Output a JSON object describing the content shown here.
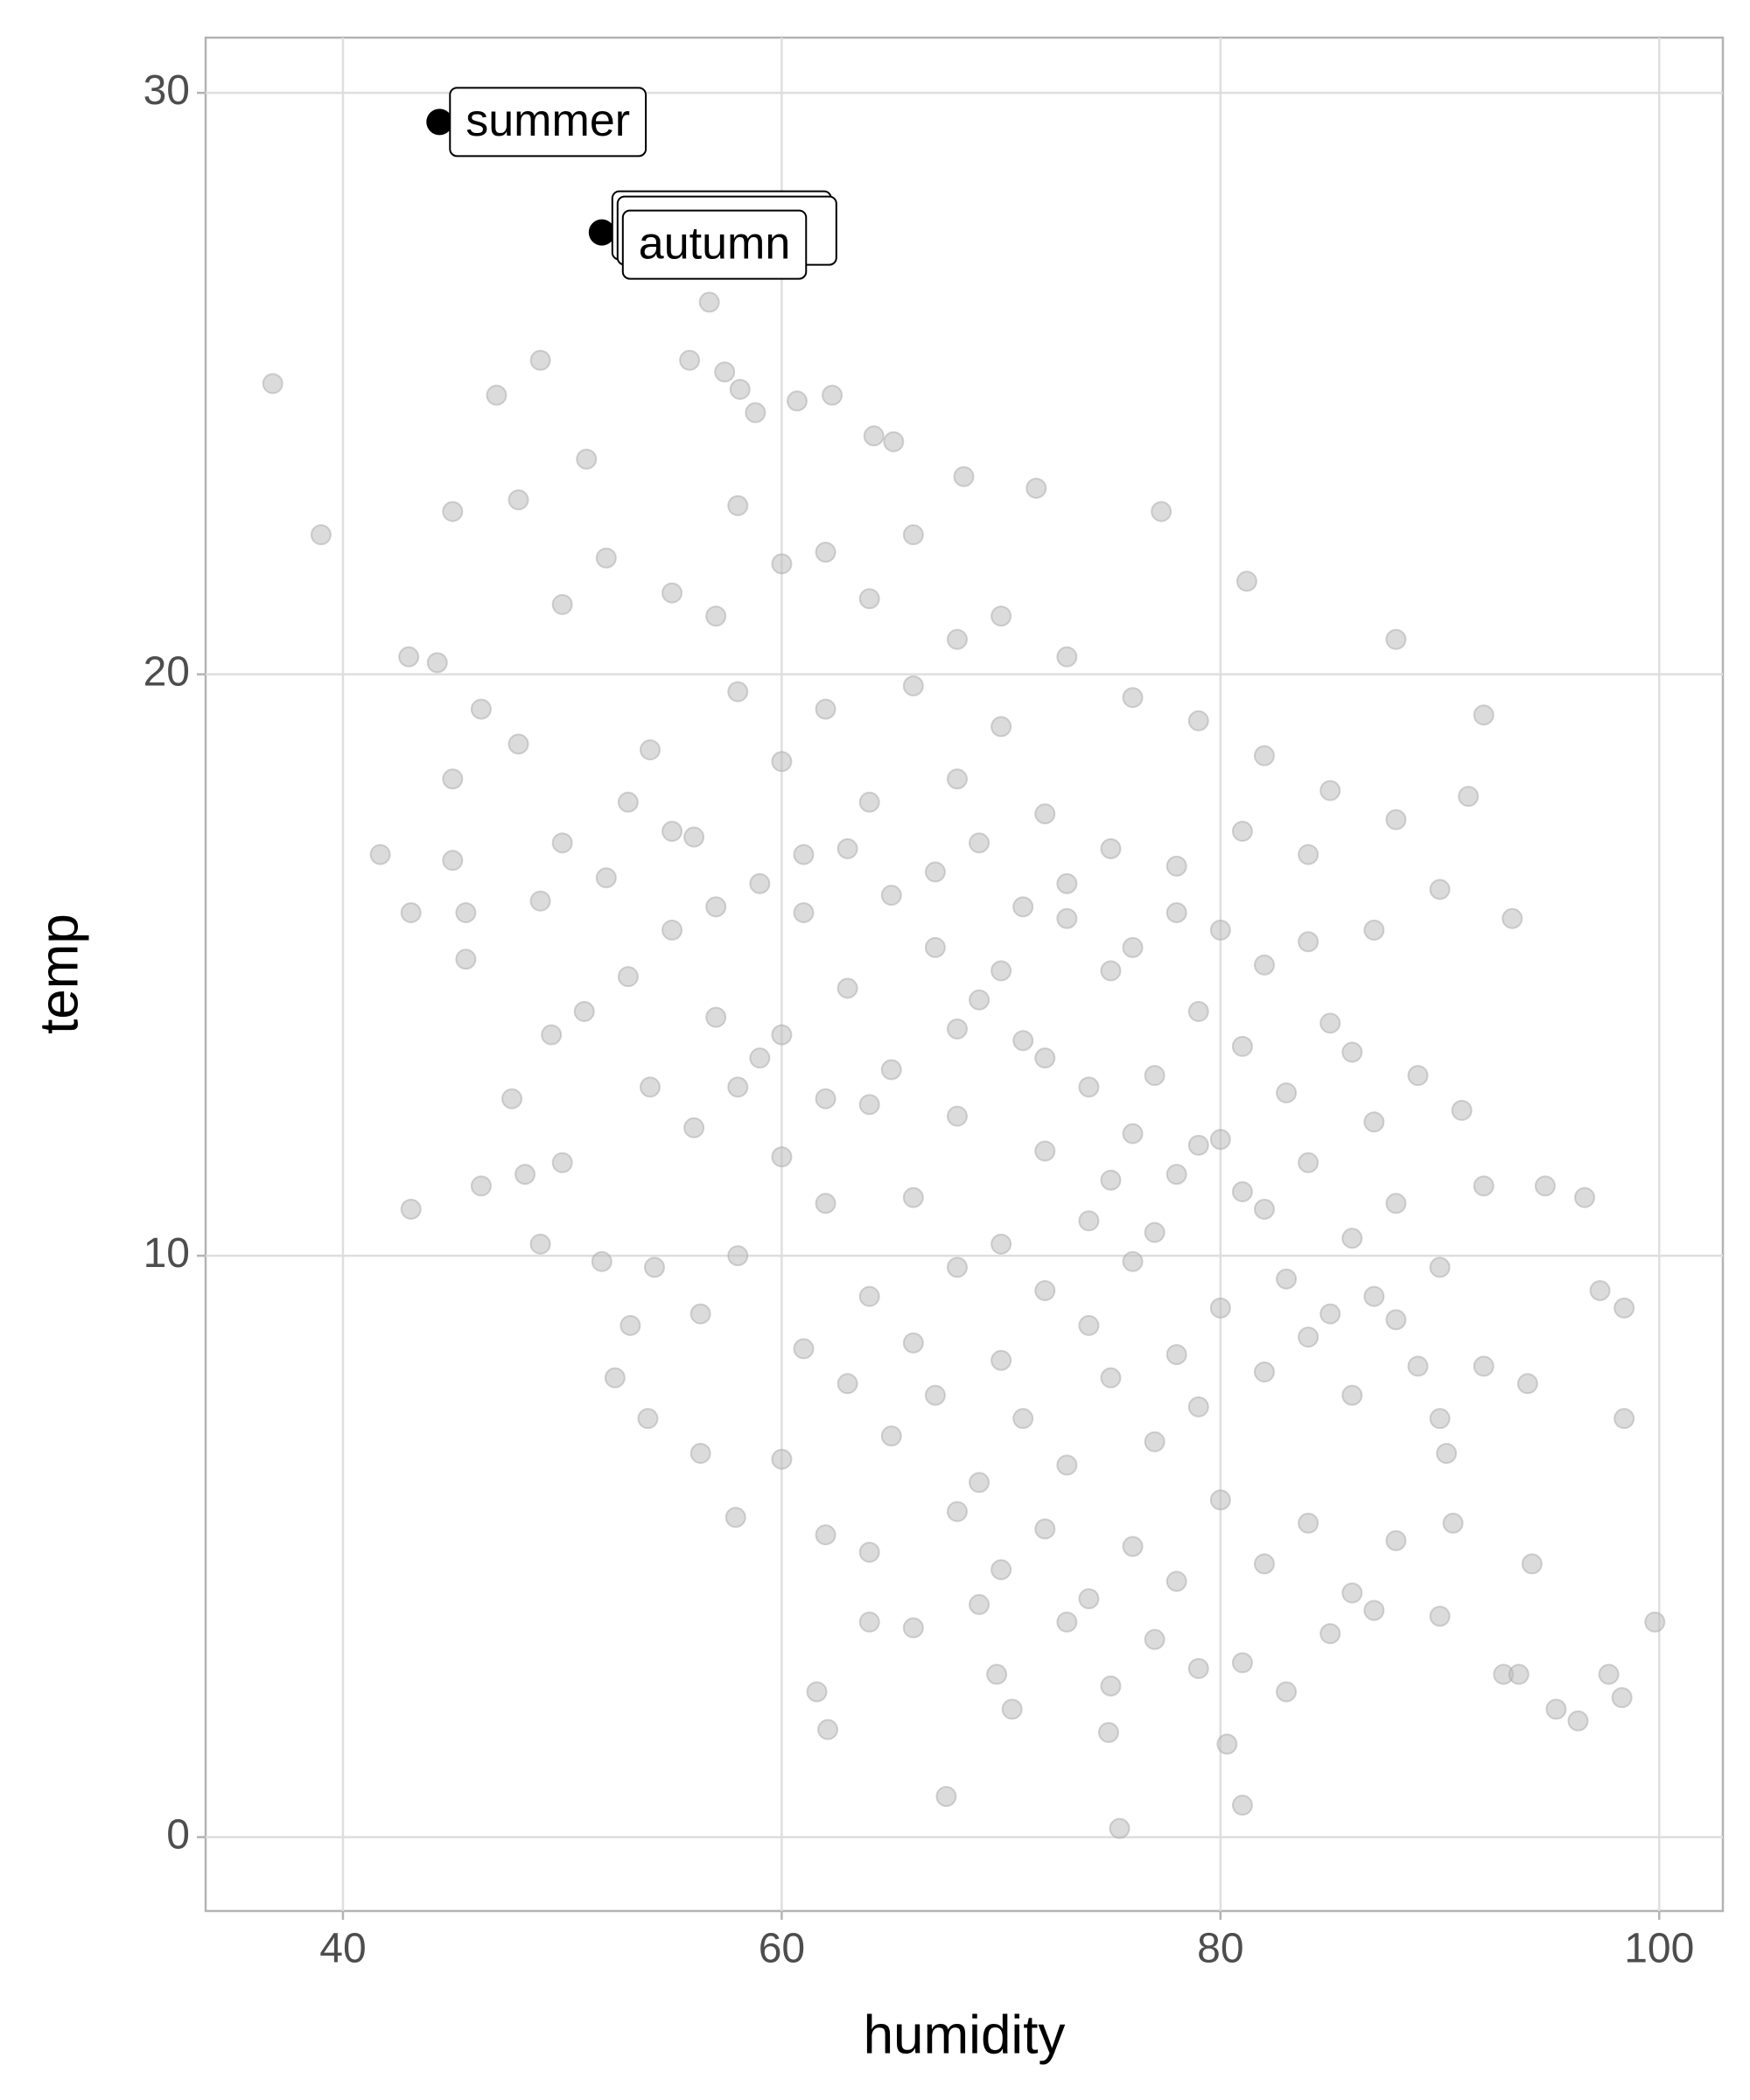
{
  "chart_data": {
    "type": "scatter",
    "x_label": "humidity",
    "y_label": "temp",
    "xlim": [
      33.74,
      102.9
    ],
    "ylim": [
      -1.27,
      30.95
    ],
    "xticks": [
      40,
      60,
      80,
      100
    ],
    "yticks": [
      0,
      10,
      20,
      30
    ],
    "grid": true,
    "color": "#bdbdbd",
    "x": [
      36.8,
      39.0,
      41.7,
      43.1,
      43.1,
      43.0,
      44.3,
      45.0,
      45.0,
      45.0,
      45.6,
      45.6,
      46.3,
      46.3,
      47.0,
      49.0,
      51.1,
      47.7,
      48.3,
      49.0,
      49.5,
      50.0,
      56.7,
      55.8,
      57.4,
      58.1,
      60.7,
      62.3,
      58.8,
      64.2,
      65.1,
      68.3,
      71.6,
      77.3,
      81.2,
      88.0,
      92.0,
      91.3,
      93.3,
      94.8,
      96.6,
      97.3,
      98.4,
      98.4,
      94.2,
      99.8,
      92.9,
      93.6,
      95.3,
      96.3,
      97.7,
      98.3,
      90.3,
      90.6,
      81.0,
      80.3,
      75.4,
      67.5,
      62.1,
      61.6,
      69.8,
      70.5,
      74.9,
      57.9,
      56.3,
      53.9,
      52.4,
      53.1,
      51.8,
      54.2,
      56.3,
      60,
      62,
      64,
      66,
      68,
      70,
      72,
      58,
      56,
      54,
      52,
      50,
      48,
      53,
      55,
      57,
      59,
      61,
      63,
      65,
      67,
      69,
      71,
      73,
      75,
      77,
      79,
      81,
      83,
      85,
      87,
      89,
      91,
      76,
      78,
      80,
      82,
      84,
      86,
      88,
      90,
      92,
      74,
      72,
      70,
      68,
      66,
      64,
      62,
      60,
      58,
      64,
      66,
      68,
      70,
      72,
      74,
      76,
      78,
      80,
      82,
      84,
      86,
      88,
      90,
      92,
      94,
      79,
      77,
      75,
      73,
      71,
      69,
      67,
      65,
      63,
      61,
      60,
      62,
      64,
      68,
      70,
      72,
      74,
      76,
      78,
      80,
      82,
      84,
      86,
      88,
      90,
      85,
      81,
      77,
      73,
      69,
      66,
      64,
      75,
      79,
      83,
      87,
      62,
      58,
      55,
      52,
      50,
      48,
      57,
      60,
      64,
      66,
      68,
      70,
      73,
      76,
      79,
      82,
      85,
      88,
      90,
      87,
      84,
      81,
      78,
      75,
      73,
      71,
      69,
      67,
      65,
      63,
      61,
      59,
      57,
      55,
      53,
      51,
      49,
      54,
      56,
      58,
      60,
      62,
      76,
      78,
      80,
      82,
      84,
      86,
      75,
      77,
      79,
      81,
      83,
      85,
      87,
      89,
      74,
      72,
      70,
      68
    ],
    "y": [
      25.0,
      22.4,
      16.9,
      15.9,
      10.8,
      20.3,
      20.2,
      22.8,
      18.2,
      16.8,
      15.9,
      15.1,
      19.4,
      11.2,
      24.8,
      25.4,
      23.7,
      12.7,
      11.4,
      10.2,
      13.8,
      11.6,
      26.4,
      25.4,
      25.2,
      24.9,
      24.7,
      24.8,
      24.5,
      24.1,
      24.0,
      23.4,
      23.2,
      22.8,
      21.6,
      20.6,
      19.3,
      17.9,
      15.8,
      11.2,
      11.0,
      9.4,
      9.1,
      7.2,
      4.7,
      3.7,
      2.8,
      2.8,
      2.2,
      2.0,
      2.8,
      2.4,
      6.6,
      5.4,
      0.55,
      1.6,
      0.15,
      0.7,
      1.85,
      2.5,
      2.8,
      2.2,
      1.8,
      5.5,
      6.6,
      7.2,
      7.9,
      8.8,
      9.9,
      9.8,
      9.0,
      18.5,
      19.4,
      17.8,
      19.8,
      18.2,
      19.1,
      17.6,
      19.7,
      17.2,
      18.7,
      16.5,
      17.1,
      18.8,
      14.8,
      15.6,
      14.1,
      13.4,
      15.9,
      14.6,
      13.2,
      15.3,
      14.4,
      13.7,
      15.8,
      14.9,
      13.1,
      14.2,
      13.6,
      12.8,
      14.0,
      12.3,
      13.1,
      12.5,
      12.1,
      11.4,
      12.0,
      10.8,
      11.6,
      10.3,
      10.9,
      9.8,
      11.2,
      10.6,
      11.8,
      10.2,
      12.4,
      11.0,
      12.6,
      10.9,
      11.7,
      10.0,
      9.3,
      8.5,
      9.8,
      8.2,
      9.4,
      8.8,
      9.9,
      8.3,
      9.1,
      8.0,
      8.6,
      7.6,
      8.9,
      7.2,
      8.1,
      7.8,
      7.4,
      6.8,
      7.9,
      6.4,
      7.2,
      6.1,
      7.6,
      6.9,
      7.8,
      8.4,
      6.5,
      5.2,
      4.9,
      5.6,
      4.6,
      5.3,
      4.1,
      5.0,
      4.4,
      5.8,
      4.7,
      5.4,
      4.2,
      5.1,
      3.8,
      3.5,
      3.0,
      3.4,
      3.7,
      4.0,
      3.6,
      3.7,
      2.6,
      2.9,
      2.5,
      3.9,
      22.1,
      22.9,
      21.4,
      22.0,
      21.2,
      23.0,
      21.0,
      21.9,
      21.3,
      22.4,
      20.6,
      21.0,
      20.3,
      19.6,
      19.2,
      18.6,
      18.0,
      17.5,
      16.3,
      15.6,
      16.9,
      17.3,
      16.7,
      17.0,
      16.4,
      16.0,
      17.1,
      16.6,
      16.2,
      17.0,
      16.9,
      16.4,
      16.0,
      17.3,
      17.8,
      14.2,
      16.1,
      12.9,
      12.2,
      12.9,
      13.8,
      12.7,
      15.3,
      15.9,
      15.6,
      15.0,
      15.4,
      13.5,
      11.3,
      10.4,
      11.9,
      11.1,
      9.6,
      9.0,
      9.3,
      8.1,
      12.9,
      13.4,
      14.9,
      13.9
    ],
    "annotations": [
      {
        "text": "summer",
        "x": 44.4,
        "y": 29.5
      },
      {
        "text": "autumn",
        "x": 51.8,
        "y": 27.6
      }
    ]
  }
}
